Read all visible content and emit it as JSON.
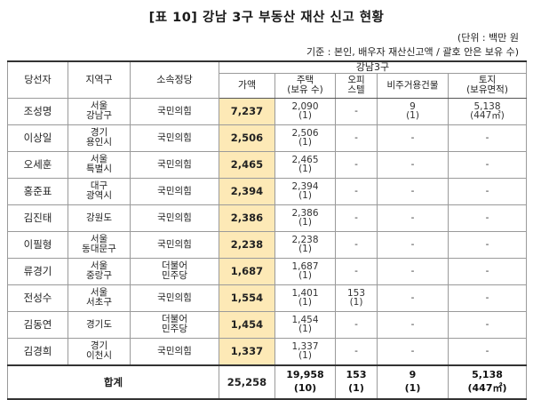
{
  "title": "[표 10] 강남 3구 부동산 재산 신고 현황",
  "unit": "(단위 : 백만 원",
  "basis": "기준 : 본인, 배우자 재산신고액 / 괄호 안은 보유 수)",
  "headers": {
    "name": "당선자",
    "region": "지역구",
    "party": "소속정당",
    "group": "강남3구",
    "value": "가액",
    "house": [
      "주택",
      "(보유 수)"
    ],
    "officetel": [
      "오피",
      "스텔"
    ],
    "nonres": "비주거용건물",
    "land": [
      "토지",
      "(보유면적)"
    ]
  },
  "rows": [
    {
      "name": "조성명",
      "region": [
        "서울",
        "강남구"
      ],
      "party": [
        "국민의힘"
      ],
      "value": "7,237",
      "house": [
        "2,090",
        "(1)"
      ],
      "officetel": [
        "-"
      ],
      "nonres": [
        "9",
        "(1)"
      ],
      "land": [
        "5,138",
        "(447㎡)"
      ]
    },
    {
      "name": "이상일",
      "region": [
        "경기",
        "용인시"
      ],
      "party": [
        "국민의힘"
      ],
      "value": "2,506",
      "house": [
        "2,506",
        "(1)"
      ],
      "officetel": [
        "-"
      ],
      "nonres": [
        "-"
      ],
      "land": [
        "-"
      ]
    },
    {
      "name": "오세훈",
      "region": [
        "서울",
        "특별시"
      ],
      "party": [
        "국민의힘"
      ],
      "value": "2,465",
      "house": [
        "2,465",
        "(1)"
      ],
      "officetel": [
        "-"
      ],
      "nonres": [
        "-"
      ],
      "land": [
        "-"
      ]
    },
    {
      "name": "홍준표",
      "region": [
        "대구",
        "광역시"
      ],
      "party": [
        "국민의힘"
      ],
      "value": "2,394",
      "house": [
        "2,394",
        "(1)"
      ],
      "officetel": [
        "-"
      ],
      "nonres": [
        "-"
      ],
      "land": [
        "-"
      ]
    },
    {
      "name": "김진태",
      "region": [
        "강원도"
      ],
      "party": [
        "국민의힘"
      ],
      "value": "2,386",
      "house": [
        "2,386",
        "(1)"
      ],
      "officetel": [
        "-"
      ],
      "nonres": [
        "-"
      ],
      "land": [
        "-"
      ]
    },
    {
      "name": "이필형",
      "region": [
        "서울",
        "동대문구"
      ],
      "party": [
        "국민의힘"
      ],
      "value": "2,238",
      "house": [
        "2,238",
        "(1)"
      ],
      "officetel": [
        "-"
      ],
      "nonres": [
        "-"
      ],
      "land": [
        "-"
      ]
    },
    {
      "name": "류경기",
      "region": [
        "서울",
        "중랑구"
      ],
      "party": [
        "더불어",
        "민주당"
      ],
      "value": "1,687",
      "house": [
        "1,687",
        "(1)"
      ],
      "officetel": [
        "-"
      ],
      "nonres": [
        "-"
      ],
      "land": [
        "-"
      ]
    },
    {
      "name": "전성수",
      "region": [
        "서울",
        "서초구"
      ],
      "party": [
        "국민의힘"
      ],
      "value": "1,554",
      "house": [
        "1,401",
        "(1)"
      ],
      "officetel": [
        "153",
        "(1)"
      ],
      "nonres": [
        "-"
      ],
      "land": [
        "-"
      ]
    },
    {
      "name": "김동연",
      "region": [
        "경기도"
      ],
      "party": [
        "더불어",
        "민주당"
      ],
      "value": "1,454",
      "house": [
        "1,454",
        "(1)"
      ],
      "officetel": [
        "-"
      ],
      "nonres": [
        "-"
      ],
      "land": [
        "-"
      ]
    },
    {
      "name": "김경희",
      "region": [
        "경기",
        "이천시"
      ],
      "party": [
        "국민의힘"
      ],
      "value": "1,337",
      "house": [
        "1,337",
        "(1)"
      ],
      "officetel": [
        "-"
      ],
      "nonres": [
        "-"
      ],
      "land": [
        "-"
      ]
    }
  ],
  "total": {
    "label": "합계",
    "value": "25,258",
    "house": [
      "19,958",
      "(10)"
    ],
    "officetel": [
      "153",
      "(1)"
    ],
    "nonres": [
      "9",
      "(1)"
    ],
    "land": [
      "5,138",
      "(447㎡)"
    ]
  },
  "colors": {
    "highlight": "#fde9b6",
    "border": "#9a9a9a"
  }
}
